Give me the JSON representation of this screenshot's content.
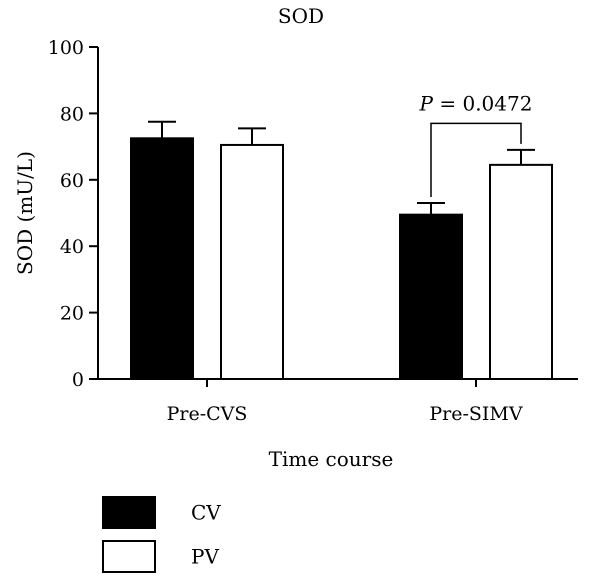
{
  "chart_data": {
    "type": "bar",
    "title": "SOD",
    "xlabel": "Time course",
    "ylabel": "SOD (mU/L)",
    "ylim": [
      0,
      100
    ],
    "yticks": [
      0,
      20,
      40,
      60,
      80,
      100
    ],
    "categories": [
      "Pre-CVS",
      "Pre-SIMV"
    ],
    "series": [
      {
        "name": "CV",
        "color": "#000000",
        "values": [
          72.5,
          49.5
        ],
        "errors": [
          5,
          3.5
        ]
      },
      {
        "name": "PV",
        "color": "#ffffff",
        "values": [
          70.5,
          64.5
        ],
        "errors": [
          5,
          4.5
        ]
      }
    ],
    "annotation": {
      "category": "Pre-SIMV",
      "p_symbol": "P",
      "p_rest": " = 0.0472"
    },
    "grid": false,
    "legend_position": "bottom-left"
  }
}
